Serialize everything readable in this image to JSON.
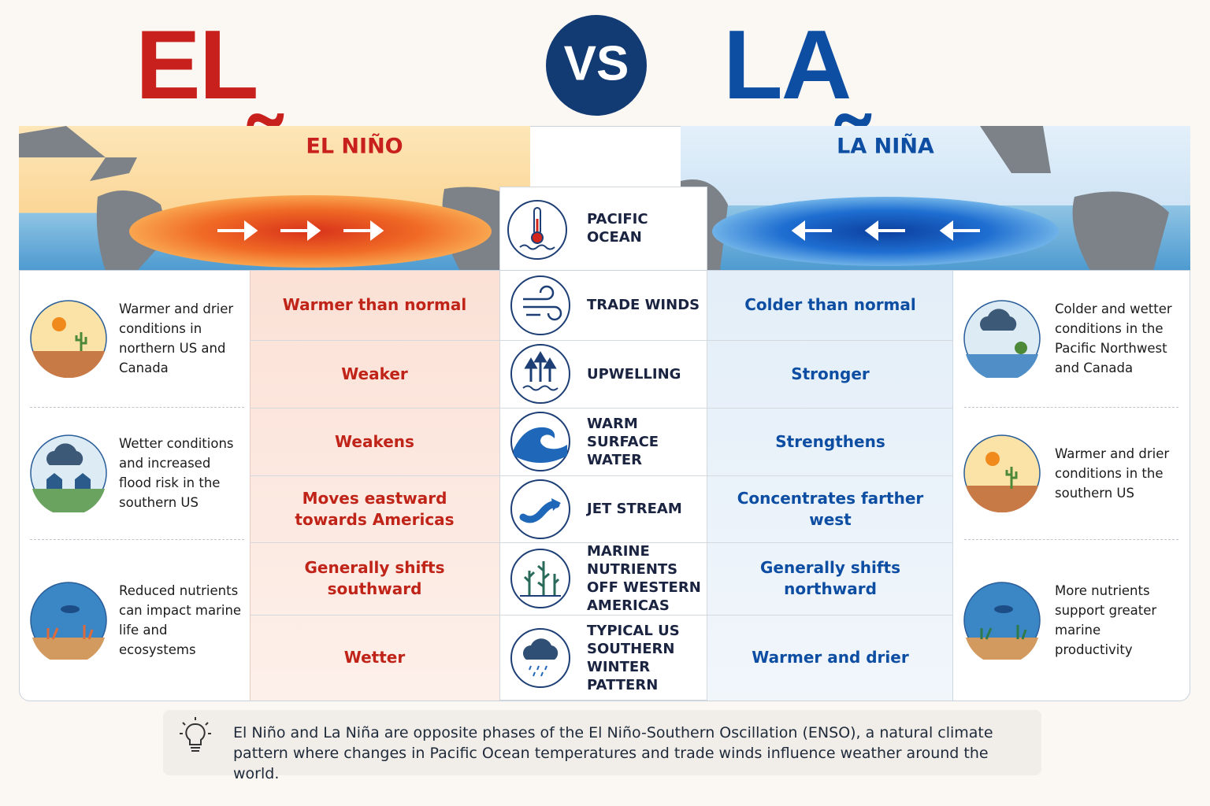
{
  "title_left": "EL NIÑO",
  "vs": "VS",
  "title_right": "LA NIÑA",
  "panels": {
    "left": "EL NIÑO",
    "right": "LA NIÑA"
  },
  "header_row": "PACIFIC OCEAN",
  "rows": [
    {
      "label": "TRADE WINDS",
      "el_nino": "Warmer than normal",
      "la_nina": "Colder than normal"
    },
    {
      "label": "UPWELLING",
      "el_nino": "Weaker",
      "la_nina": "Stronger"
    },
    {
      "label": "WARM SURFACE WATER",
      "el_nino": "Weakens",
      "la_nina": "Strengthens"
    },
    {
      "label": "JET STREAM",
      "el_nino": "Moves eastward towards Americas",
      "la_nina": "Concentrates farther west"
    },
    {
      "label": "MARINE NUTRIENTS OFF WESTERN AMERICAS",
      "el_nino": "Generally shifts southward",
      "la_nina": "Generally shifts northward"
    },
    {
      "label": "TYPICAL US SOUTHERN WINTER PATTERN",
      "el_nino": "Wetter",
      "la_nina": "Warmer and drier"
    }
  ],
  "el_nino_impacts": [
    "Warmer and drier conditions in northern US and Canada",
    "Wetter conditions and increased flood risk in the southern US",
    "Reduced nutrients can impact marine life and ecosystems"
  ],
  "la_nina_impacts": [
    "Colder and wetter conditions in the Pacific Northwest and Canada",
    "Warmer and drier conditions in the southern US",
    "More nutrients support greater marine productivity"
  ],
  "note": "El Niño and La Niña are opposite phases of the El Niño-Southern Oscillation (ENSO), a natural climate pattern where changes in Pacific Ocean temperatures and trade winds influence weather around the world."
}
